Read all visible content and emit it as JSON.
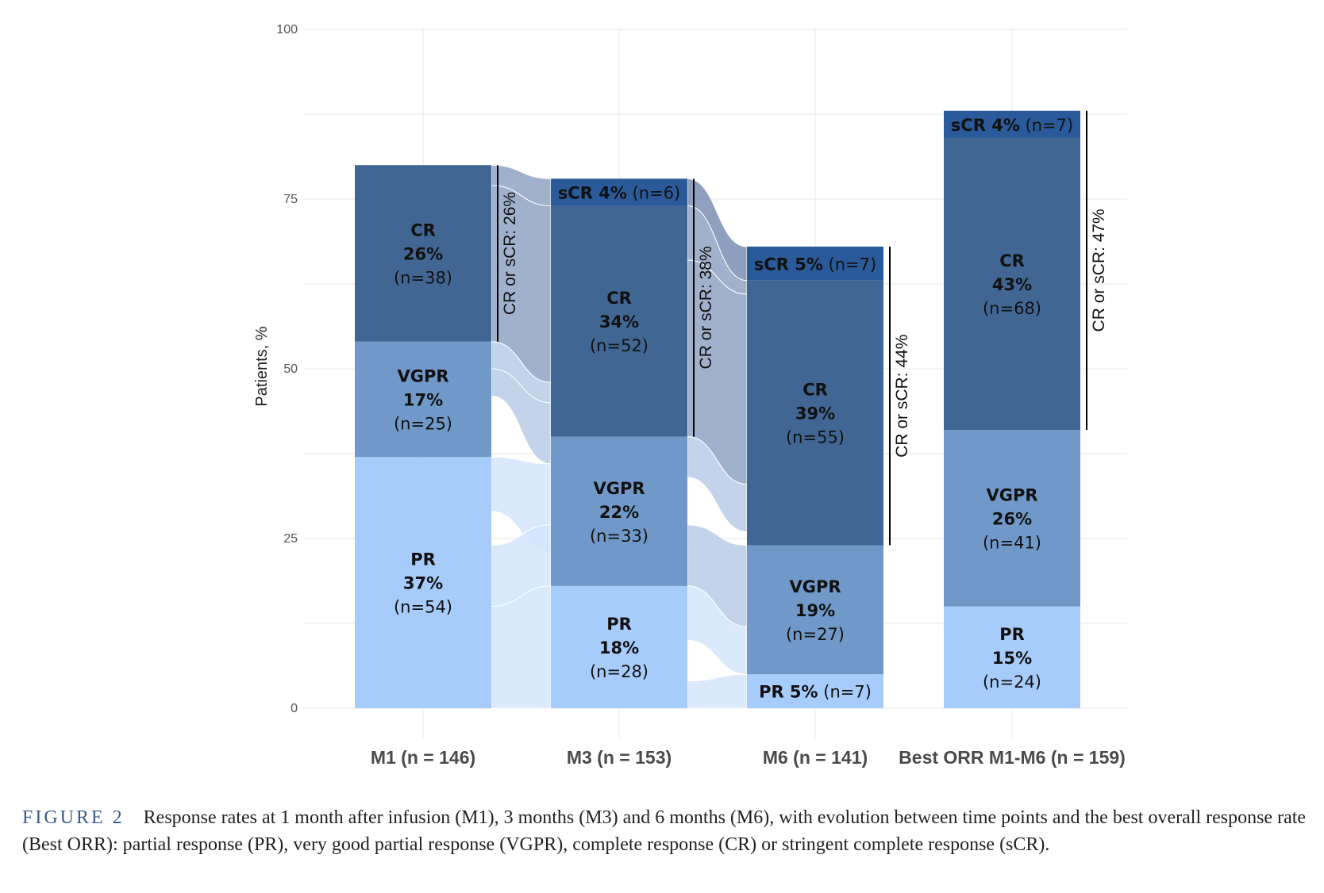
{
  "chart_data": {
    "type": "bar",
    "stacked": true,
    "ylabel": "Patients, %",
    "ylim": [
      0,
      100
    ],
    "yticks": [
      0,
      25,
      50,
      75,
      100
    ],
    "grid": true,
    "categories": [
      "M1 (n = 146)",
      "M3 (n = 153)",
      "M6 (n = 141)",
      "Best ORR M1-M6 (n = 159)"
    ],
    "colors": {
      "PR": "#a7cbfa",
      "VGPR": "#7099c9",
      "CR": "#416694",
      "sCR": "#2b5a9a"
    },
    "stacks": [
      {
        "category": "M1 (n = 146)",
        "segments": [
          {
            "name": "PR",
            "value": 37,
            "pct": "37%",
            "n": "(n=54)",
            "layout": "stack"
          },
          {
            "name": "VGPR",
            "value": 17,
            "pct": "17%",
            "n": "(n=25)",
            "layout": "stack"
          },
          {
            "name": "CR",
            "value": 26,
            "pct": "26%",
            "n": "(n=38)",
            "layout": "stack"
          }
        ],
        "bracket": {
          "label": "CR or sCR: 26%",
          "from": 54,
          "to": 80
        }
      },
      {
        "category": "M3 (n = 153)",
        "segments": [
          {
            "name": "PR",
            "value": 18,
            "pct": "18%",
            "n": "(n=28)",
            "layout": "stack"
          },
          {
            "name": "VGPR",
            "value": 22,
            "pct": "22%",
            "n": "(n=33)",
            "layout": "stack"
          },
          {
            "name": "CR",
            "value": 34,
            "pct": "34%",
            "n": "(n=52)",
            "layout": "stack"
          },
          {
            "name": "sCR",
            "value": 4,
            "pct": "4%",
            "n": "(n=6)",
            "layout": "inline"
          }
        ],
        "bracket": {
          "label": "CR or sCR: 38%",
          "from": 40,
          "to": 78
        }
      },
      {
        "category": "M6 (n = 141)",
        "segments": [
          {
            "name": "PR",
            "value": 5,
            "pct": "5%",
            "n": "(n=7)",
            "layout": "inline"
          },
          {
            "name": "VGPR",
            "value": 19,
            "pct": "19%",
            "n": "(n=27)",
            "layout": "stack"
          },
          {
            "name": "CR",
            "value": 39,
            "pct": "39%",
            "n": "(n=55)",
            "layout": "stack"
          },
          {
            "name": "sCR",
            "value": 5,
            "pct": "5%",
            "n": "(n=7)",
            "layout": "inline"
          }
        ],
        "bracket": {
          "label": "CR or sCR: 44%",
          "from": 24,
          "to": 68
        }
      },
      {
        "category": "Best ORR M1-M6 (n = 159)",
        "segments": [
          {
            "name": "PR",
            "value": 15,
            "pct": "15%",
            "n": "(n=24)",
            "layout": "stack"
          },
          {
            "name": "VGPR",
            "value": 26,
            "pct": "26%",
            "n": "(n=41)",
            "layout": "stack"
          },
          {
            "name": "CR",
            "value": 43,
            "pct": "43%",
            "n": "(n=68)",
            "layout": "stack"
          },
          {
            "name": "sCR",
            "value": 4,
            "pct": "4%",
            "n": "(n=7)",
            "layout": "inline"
          }
        ],
        "bracket": {
          "label": "CR or sCR: 47%",
          "from": 41,
          "to": 88
        }
      }
    ],
    "flows": [
      {
        "from_bar": 0,
        "to_bar": 1,
        "from": [
          77,
          80
        ],
        "to": [
          74,
          78
        ],
        "kind": "CR"
      },
      {
        "from_bar": 0,
        "to_bar": 1,
        "from": [
          54,
          77
        ],
        "to": [
          48,
          74
        ],
        "kind": "CR"
      },
      {
        "from_bar": 0,
        "to_bar": 1,
        "from": [
          50,
          54
        ],
        "to": [
          45,
          48
        ],
        "kind": "VGPR"
      },
      {
        "from_bar": 0,
        "to_bar": 1,
        "from": [
          46,
          50
        ],
        "to": [
          36,
          45
        ],
        "kind": "VGPR"
      },
      {
        "from_bar": 0,
        "to_bar": 1,
        "from": [
          29,
          37
        ],
        "to": [
          23,
          36
        ],
        "kind": "PR"
      },
      {
        "from_bar": 0,
        "to_bar": 1,
        "from": [
          15,
          24
        ],
        "to": [
          18,
          27
        ],
        "kind": "PR"
      },
      {
        "from_bar": 0,
        "to_bar": 1,
        "from": [
          0,
          15
        ],
        "to": [
          0,
          18
        ],
        "kind": "PR"
      },
      {
        "from_bar": 1,
        "to_bar": 2,
        "from": [
          74,
          78
        ],
        "to": [
          63,
          68
        ],
        "kind": "sCR"
      },
      {
        "from_bar": 1,
        "to_bar": 2,
        "from": [
          66,
          74
        ],
        "to": [
          61,
          63
        ],
        "kind": "CR"
      },
      {
        "from_bar": 1,
        "to_bar": 2,
        "from": [
          40,
          66
        ],
        "to": [
          33,
          61
        ],
        "kind": "CR"
      },
      {
        "from_bar": 1,
        "to_bar": 2,
        "from": [
          34,
          40
        ],
        "to": [
          26,
          33
        ],
        "kind": "VGPR"
      },
      {
        "from_bar": 1,
        "to_bar": 2,
        "from": [
          18,
          27
        ],
        "to": [
          12,
          24
        ],
        "kind": "VGPR"
      },
      {
        "from_bar": 1,
        "to_bar": 2,
        "from": [
          10,
          18
        ],
        "to": [
          5,
          12
        ],
        "kind": "PR"
      },
      {
        "from_bar": 1,
        "to_bar": 2,
        "from": [
          0,
          4
        ],
        "to": [
          0,
          5
        ],
        "kind": "PR"
      }
    ]
  },
  "caption": {
    "figure_label": "FIGURE 2",
    "text": "Response rates at 1 month after infusion (M1), 3 months (M3) and 6 months (M6), with evolution between time points and the best overall response rate (Best ORR): partial response (PR), very good partial response (VGPR), complete response (CR) or stringent complete response (sCR)."
  }
}
